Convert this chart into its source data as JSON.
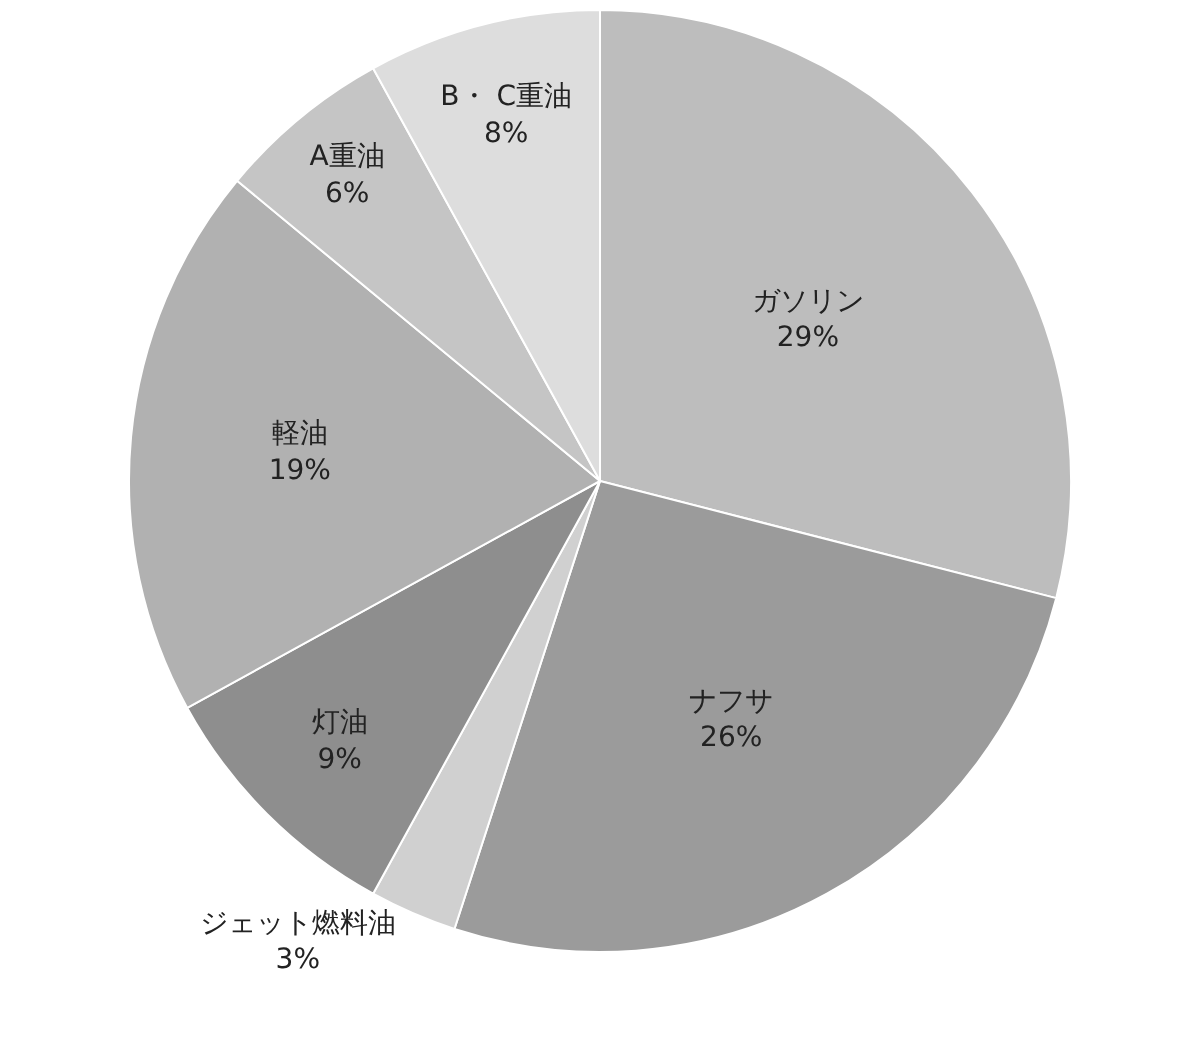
{
  "chart_data": {
    "type": "pie",
    "categories": [
      "ガソリン",
      "ナフサ",
      "ジェット燃料油",
      "灯油",
      "軽油",
      "A重油",
      "B・ C重油"
    ],
    "values": [
      29,
      26,
      3,
      9,
      19,
      6,
      8
    ],
    "value_labels": [
      "29%",
      "26%",
      "3%",
      "9%",
      "19%",
      "6%",
      "8%"
    ],
    "colors": [
      "#bdbdbd",
      "#9b9b9b",
      "#d0d0d0",
      "#8e8e8e",
      "#b1b1b1",
      "#c5c5c5",
      "#dddddd"
    ],
    "legend": false
  }
}
